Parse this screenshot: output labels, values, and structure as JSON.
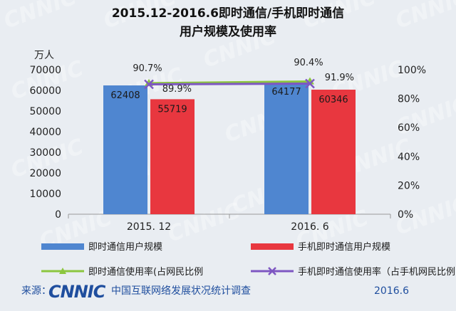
{
  "chart_data": {
    "type": "bar",
    "title_line1": "2015.12-2016.6即时通信/手机即时通信",
    "title_line2": "用户规模及使用率",
    "y_unit": "万人",
    "categories": [
      "2015. 12",
      "2016. 6"
    ],
    "ylim": [
      0,
      70000
    ],
    "y_ticks": [
      "0",
      "10000",
      "20000",
      "30000",
      "40000",
      "50000",
      "60000",
      "70000"
    ],
    "y2lim": [
      0,
      100
    ],
    "y2_ticks": [
      "0%",
      "20%",
      "40%",
      "60%",
      "80%",
      "100%"
    ],
    "series": [
      {
        "name": "即时通信用户规模",
        "type": "bar",
        "values": [
          62408,
          64177
        ],
        "labels": [
          "62408",
          "64177"
        ],
        "color": "#4f86d0"
      },
      {
        "name": "手机即时通信用户规模",
        "type": "bar",
        "values": [
          55719,
          60346
        ],
        "labels": [
          "55719",
          "60346"
        ],
        "color": "#e8373f"
      },
      {
        "name": "即时通信使用率(占网民比例",
        "type": "line",
        "axis": "right",
        "values": [
          90.7,
          91.9
        ],
        "labels": [
          "90.7%",
          "91.9%"
        ],
        "color": "#8cc63f",
        "marker": "triangle"
      },
      {
        "name": "手机即时通信使用率（占手机网民比例",
        "type": "line",
        "axis": "right",
        "values": [
          89.9,
          90.4
        ],
        "labels": [
          "89.9%",
          "90.4%"
        ],
        "color": "#7e57c2",
        "marker": "x"
      }
    ],
    "legend_position": "bottom",
    "grid": false
  },
  "footer": {
    "source_label": "来源：",
    "logo": "CNNIC",
    "org": "中国互联网络发展状况统计调查",
    "date": "2016.6"
  },
  "watermark": "CNNIC"
}
